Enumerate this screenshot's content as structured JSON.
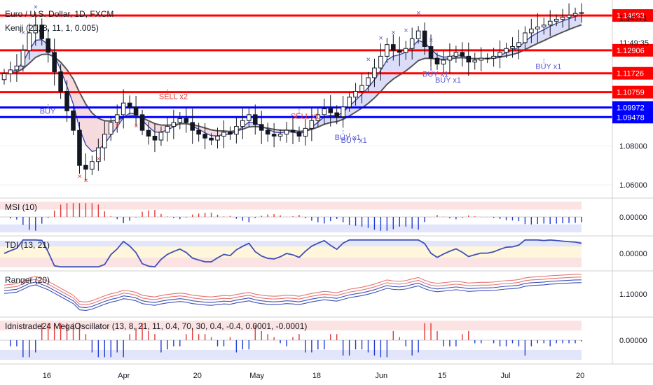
{
  "title": "Euro / U.S. Dollar, 1D, FXCM",
  "colors": {
    "red_level": "#ff0000",
    "blue_level": "#0000ff",
    "up_candle": "#ffffff",
    "down_candle": "#131722",
    "signal_marker": "#5b5bd6",
    "sell_marker": "#e53935",
    "band_fill": "#d7d9f7",
    "band_fill_red": "#f6d6d9",
    "grid": "#eeeeee",
    "axis_text": "#131722"
  },
  "overlay": {
    "name": "Kenji (21, 8, 11, 1, 0.005)"
  },
  "price_axis": {
    "ticks": [
      "1.14571",
      "1.08000",
      "1.06000"
    ],
    "ylim": [
      1.055,
      1.152
    ]
  },
  "countdown": "11:49:35",
  "levels": [
    {
      "value": 1.14693,
      "label": "1.14693",
      "color": "#ff0000"
    },
    {
      "value": 1.12906,
      "label": "1.12906",
      "color": "#ff0000"
    },
    {
      "value": 1.11726,
      "label": "1.11726",
      "color": "#ff0000"
    },
    {
      "value": 1.10759,
      "label": "1.10759",
      "color": "#ff0000"
    },
    {
      "value": 1.09972,
      "label": "1.09972",
      "color": "#0000ff"
    },
    {
      "value": 1.09478,
      "label": "1.09478",
      "color": "#0000ff"
    }
  ],
  "time_axis": {
    "labels": [
      {
        "label": "16",
        "index": 7
      },
      {
        "label": "Apr",
        "index": 19
      },
      {
        "label": "20",
        "index": 31
      },
      {
        "label": "May",
        "index": 40
      },
      {
        "label": "18",
        "index": 50
      },
      {
        "label": "Jun",
        "index": 60
      },
      {
        "label": "15",
        "index": 70
      },
      {
        "label": "Jul",
        "index": 80
      },
      {
        "label": "20",
        "index": 92
      }
    ]
  },
  "signals": [
    {
      "text": "BUY",
      "index": 7,
      "price": 1.0965
    },
    {
      "text": "SELL x2",
      "index": 26,
      "price": 1.104
    },
    {
      "text": "SELL x1",
      "index": 47,
      "price": 1.094
    },
    {
      "text": "BUY x1",
      "index": 54,
      "price": 1.083
    },
    {
      "text": "BUY x1",
      "index": 55,
      "price": 1.0815
    },
    {
      "text": "BUY x1",
      "index": 68,
      "price": 1.1155
    },
    {
      "text": "BUY x1",
      "index": 70,
      "price": 1.1125
    },
    {
      "text": "BUY x1",
      "index": 86,
      "price": 1.1195
    }
  ],
  "subpanes": [
    {
      "name": "MSI (10)",
      "tick": "0.00000"
    },
    {
      "name": "TDI (13, 21)",
      "tick": "0.00000"
    },
    {
      "name": "Ranger (20)",
      "tick": "1.10000"
    },
    {
      "name": "Idnistrade24 MegaOscillator (13, 8, 21, 11, 0.4, 70, 30, 0.4, -0.4, 0.0001, -0.0001)",
      "tick": "0.00000"
    }
  ],
  "chart_data": {
    "type": "candlestick",
    "title": "Euro / U.S. Dollar, 1D, FXCM",
    "xlabel": "",
    "ylabel": "",
    "ylim": [
      1.055,
      1.152
    ],
    "grid": false,
    "close": [
      1.117,
      1.119,
      1.121,
      1.129,
      1.138,
      1.142,
      1.135,
      1.128,
      1.118,
      1.108,
      1.098,
      1.088,
      1.07,
      1.068,
      1.072,
      1.079,
      1.086,
      1.092,
      1.096,
      1.102,
      1.1,
      1.096,
      1.088,
      1.085,
      1.083,
      1.087,
      1.09,
      1.092,
      1.094,
      1.092,
      1.088,
      1.086,
      1.084,
      1.083,
      1.085,
      1.087,
      1.086,
      1.09,
      1.093,
      1.096,
      1.091,
      1.088,
      1.086,
      1.085,
      1.086,
      1.088,
      1.087,
      1.085,
      1.089,
      1.093,
      1.096,
      1.099,
      1.097,
      1.095,
      1.1,
      1.105,
      1.108,
      1.111,
      1.115,
      1.12,
      1.126,
      1.132,
      1.129,
      1.128,
      1.13,
      1.135,
      1.139,
      1.131,
      1.125,
      1.122,
      1.124,
      1.126,
      1.128,
      1.126,
      1.123,
      1.124,
      1.125,
      1.125,
      1.126,
      1.128,
      1.13,
      1.131,
      1.133,
      1.138,
      1.14,
      1.141,
      1.142,
      1.144,
      1.145,
      1.146,
      1.147,
      1.148,
      1.1484
    ],
    "candles": "open/high/low/close per day, derived in script from close series"
  }
}
